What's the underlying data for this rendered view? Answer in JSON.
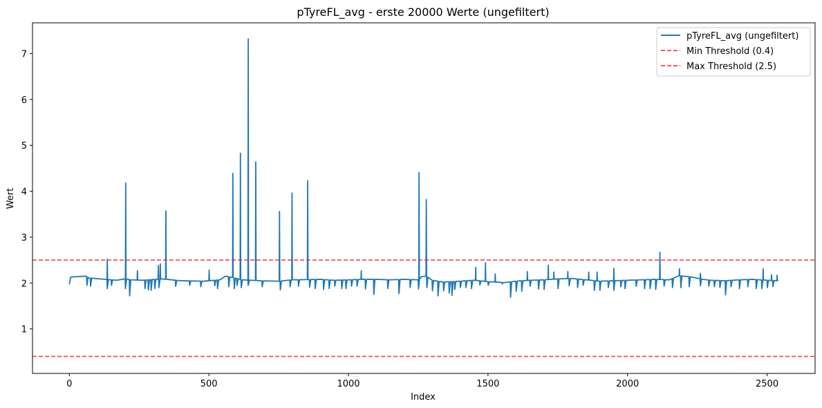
{
  "chart_data": {
    "type": "line",
    "title": "pTyreFL_avg - erste 20000 Werte (ungefiltert)",
    "xlabel": "Index",
    "ylabel": "Wert",
    "xlim": [
      -132,
      2672
    ],
    "ylim": [
      0.03,
      7.67
    ],
    "xticks": [
      0,
      500,
      1000,
      1500,
      2000,
      2500
    ],
    "yticks": [
      1,
      2,
      3,
      4,
      5,
      6,
      7
    ],
    "grid": false,
    "legend_position": "top-right",
    "colors": {
      "series": "#1f77b4",
      "threshold": "#e8282c"
    },
    "series": [
      {
        "name": "pTyreFL_avg (ungefiltert)",
        "baseline": [
          [
            0,
            1.97
          ],
          [
            5,
            2.13
          ],
          [
            60,
            2.15
          ],
          [
            70,
            2.11
          ],
          [
            130,
            2.08
          ],
          [
            170,
            2.06
          ],
          [
            200,
            2.09
          ],
          [
            220,
            2.07
          ],
          [
            260,
            2.06
          ],
          [
            330,
            2.09
          ],
          [
            400,
            2.05
          ],
          [
            480,
            2.04
          ],
          [
            540,
            2.07
          ],
          [
            560,
            2.15
          ],
          [
            585,
            2.12
          ],
          [
            620,
            2.07
          ],
          [
            680,
            2.05
          ],
          [
            750,
            2.04
          ],
          [
            800,
            2.07
          ],
          [
            900,
            2.08
          ],
          [
            950,
            2.06
          ],
          [
            1000,
            2.07
          ],
          [
            1050,
            2.08
          ],
          [
            1100,
            2.08
          ],
          [
            1150,
            2.07
          ],
          [
            1200,
            2.08
          ],
          [
            1250,
            2.07
          ],
          [
            1262,
            2.14
          ],
          [
            1280,
            2.15
          ],
          [
            1300,
            2.06
          ],
          [
            1340,
            2.02
          ],
          [
            1400,
            2.04
          ],
          [
            1450,
            2.06
          ],
          [
            1500,
            2.03
          ],
          [
            1560,
            2.01
          ],
          [
            1600,
            2.04
          ],
          [
            1650,
            2.06
          ],
          [
            1700,
            2.07
          ],
          [
            1750,
            2.09
          ],
          [
            1800,
            2.1
          ],
          [
            1850,
            2.07
          ],
          [
            1900,
            2.04
          ],
          [
            1950,
            2.05
          ],
          [
            2000,
            2.06
          ],
          [
            2050,
            2.07
          ],
          [
            2100,
            2.08
          ],
          [
            2150,
            2.07
          ],
          [
            2185,
            2.16
          ],
          [
            2230,
            2.13
          ],
          [
            2270,
            2.08
          ],
          [
            2300,
            2.06
          ],
          [
            2350,
            2.05
          ],
          [
            2400,
            2.07
          ],
          [
            2450,
            2.08
          ],
          [
            2500,
            2.06
          ],
          [
            2540,
            2.05
          ]
        ],
        "spikes_up": [
          [
            135,
            2.52
          ],
          [
            201,
            4.18
          ],
          [
            243,
            2.27
          ],
          [
            318,
            2.38
          ],
          [
            325,
            2.42
          ],
          [
            345,
            3.57
          ],
          [
            500,
            2.28
          ],
          [
            585,
            4.39
          ],
          [
            612,
            4.83
          ],
          [
            640,
            7.32
          ],
          [
            667,
            4.64
          ],
          [
            752,
            3.56
          ],
          [
            797,
            3.96
          ],
          [
            853,
            4.23
          ],
          [
            1045,
            2.27
          ],
          [
            1252,
            4.41
          ],
          [
            1278,
            3.82
          ],
          [
            1455,
            2.34
          ],
          [
            1490,
            2.44
          ],
          [
            1525,
            2.2
          ],
          [
            1640,
            2.25
          ],
          [
            1715,
            2.39
          ],
          [
            1735,
            2.24
          ],
          [
            1785,
            2.25
          ],
          [
            1860,
            2.24
          ],
          [
            1890,
            2.24
          ],
          [
            1950,
            2.32
          ],
          [
            2115,
            2.67
          ],
          [
            2185,
            2.31
          ],
          [
            2260,
            2.21
          ],
          [
            2485,
            2.31
          ],
          [
            2515,
            2.18
          ],
          [
            2535,
            2.17
          ]
        ],
        "spikes_down": [
          [
            62,
            1.95
          ],
          [
            75,
            1.93
          ],
          [
            135,
            1.88
          ],
          [
            150,
            1.95
          ],
          [
            200,
            1.88
          ],
          [
            215,
            1.72
          ],
          [
            270,
            1.88
          ],
          [
            282,
            1.85
          ],
          [
            292,
            1.84
          ],
          [
            305,
            1.88
          ],
          [
            320,
            1.9
          ],
          [
            380,
            1.93
          ],
          [
            430,
            1.95
          ],
          [
            470,
            1.92
          ],
          [
            520,
            1.94
          ],
          [
            530,
            1.88
          ],
          [
            570,
            1.92
          ],
          [
            590,
            1.88
          ],
          [
            600,
            1.95
          ],
          [
            615,
            1.9
          ],
          [
            640,
            1.95
          ],
          [
            690,
            1.92
          ],
          [
            755,
            1.85
          ],
          [
            790,
            1.92
          ],
          [
            820,
            1.93
          ],
          [
            860,
            1.91
          ],
          [
            880,
            1.88
          ],
          [
            910,
            1.86
          ],
          [
            930,
            1.88
          ],
          [
            950,
            1.93
          ],
          [
            975,
            1.88
          ],
          [
            990,
            1.88
          ],
          [
            1010,
            1.93
          ],
          [
            1030,
            1.93
          ],
          [
            1060,
            1.87
          ],
          [
            1090,
            1.75
          ],
          [
            1140,
            1.88
          ],
          [
            1180,
            1.77
          ],
          [
            1220,
            1.9
          ],
          [
            1250,
            1.87
          ],
          [
            1280,
            1.9
          ],
          [
            1300,
            1.83
          ],
          [
            1320,
            1.72
          ],
          [
            1340,
            1.83
          ],
          [
            1360,
            1.78
          ],
          [
            1370,
            1.73
          ],
          [
            1380,
            1.86
          ],
          [
            1400,
            1.9
          ],
          [
            1420,
            1.9
          ],
          [
            1440,
            1.88
          ],
          [
            1470,
            1.96
          ],
          [
            1500,
            1.95
          ],
          [
            1550,
            1.98
          ],
          [
            1580,
            1.69
          ],
          [
            1600,
            1.82
          ],
          [
            1620,
            1.82
          ],
          [
            1650,
            1.93
          ],
          [
            1680,
            1.87
          ],
          [
            1700,
            1.86
          ],
          [
            1750,
            1.88
          ],
          [
            1790,
            1.94
          ],
          [
            1820,
            1.9
          ],
          [
            1840,
            1.95
          ],
          [
            1880,
            1.84
          ],
          [
            1900,
            1.84
          ],
          [
            1930,
            1.9
          ],
          [
            1950,
            1.84
          ],
          [
            1975,
            1.92
          ],
          [
            1990,
            1.88
          ],
          [
            2030,
            1.93
          ],
          [
            2060,
            1.88
          ],
          [
            2080,
            1.88
          ],
          [
            2100,
            1.86
          ],
          [
            2130,
            1.93
          ],
          [
            2160,
            1.9
          ],
          [
            2190,
            1.9
          ],
          [
            2220,
            1.92
          ],
          [
            2260,
            1.94
          ],
          [
            2290,
            1.93
          ],
          [
            2310,
            1.92
          ],
          [
            2330,
            1.9
          ],
          [
            2350,
            1.74
          ],
          [
            2370,
            1.92
          ],
          [
            2400,
            1.88
          ],
          [
            2430,
            1.92
          ],
          [
            2460,
            1.88
          ],
          [
            2480,
            1.88
          ],
          [
            2500,
            1.9
          ],
          [
            2520,
            1.92
          ]
        ]
      },
      {
        "name": "Min Threshold (0.4)",
        "y": 0.4,
        "style": "dashed"
      },
      {
        "name": "Max Threshold (2.5)",
        "y": 2.5,
        "style": "dashed"
      }
    ]
  }
}
